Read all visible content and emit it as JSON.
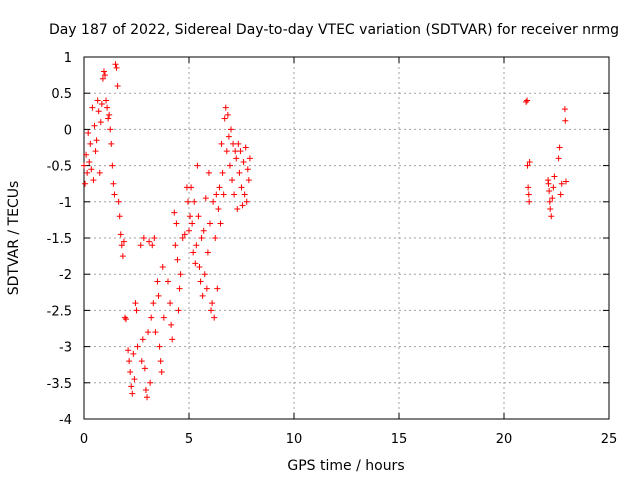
{
  "chart_data": {
    "type": "scatter",
    "title": "Day 187 of 2022, Sidereal Day-to-day VTEC variation (SDTVAR) for receiver nrmg",
    "xlabel": "GPS time / hours",
    "ylabel": "SDTVAR / TECUs",
    "xlim": [
      0,
      25
    ],
    "ylim": [
      -4,
      1
    ],
    "x_ticks": [
      "0",
      "5",
      "10",
      "15",
      "20",
      "25"
    ],
    "y_ticks": [
      "1",
      "0.5",
      "0",
      "-0.5",
      "-1",
      "-1.5",
      "-2",
      "-2.5",
      "-3",
      "-3.5",
      "-4"
    ],
    "grid": true,
    "marker": "+",
    "color": "#ff0000",
    "series": [
      {
        "name": "SDTVAR",
        "points": [
          [
            0.0,
            -0.5
          ],
          [
            0.05,
            -0.75
          ],
          [
            0.1,
            -0.35
          ],
          [
            0.15,
            -0.6
          ],
          [
            0.2,
            -0.05
          ],
          [
            0.25,
            -0.45
          ],
          [
            0.3,
            -0.2
          ],
          [
            0.35,
            -0.55
          ],
          [
            0.4,
            0.3
          ],
          [
            0.45,
            -0.7
          ],
          [
            0.5,
            0.05
          ],
          [
            0.55,
            -0.3
          ],
          [
            0.6,
            -0.15
          ],
          [
            0.65,
            0.4
          ],
          [
            0.7,
            0.25
          ],
          [
            0.75,
            -0.6
          ],
          [
            0.8,
            0.1
          ],
          [
            0.85,
            0.35
          ],
          [
            0.9,
            0.7
          ],
          [
            0.95,
            0.8
          ],
          [
            1.0,
            0.75
          ],
          [
            1.05,
            0.4
          ],
          [
            1.1,
            0.3
          ],
          [
            1.15,
            0.15
          ],
          [
            1.2,
            0.2
          ],
          [
            1.25,
            0.0
          ],
          [
            1.3,
            -0.2
          ],
          [
            1.35,
            -0.5
          ],
          [
            1.4,
            -0.75
          ],
          [
            1.45,
            -0.9
          ],
          [
            1.5,
            0.9
          ],
          [
            1.55,
            0.85
          ],
          [
            1.6,
            0.6
          ],
          [
            1.65,
            -1.0
          ],
          [
            1.7,
            -1.2
          ],
          [
            1.75,
            -1.45
          ],
          [
            1.8,
            -1.6
          ],
          [
            1.85,
            -1.75
          ],
          [
            1.9,
            -1.55
          ],
          [
            1.95,
            -2.6
          ],
          [
            2.0,
            -2.62
          ],
          [
            2.1,
            -3.05
          ],
          [
            2.15,
            -3.2
          ],
          [
            2.2,
            -3.35
          ],
          [
            2.25,
            -3.55
          ],
          [
            2.3,
            -3.65
          ],
          [
            2.35,
            -3.1
          ],
          [
            2.4,
            -3.45
          ],
          [
            2.45,
            -2.4
          ],
          [
            2.5,
            -2.5
          ],
          [
            2.55,
            -3.0
          ],
          [
            2.7,
            -1.6
          ],
          [
            2.75,
            -3.2
          ],
          [
            2.8,
            -2.9
          ],
          [
            2.85,
            -1.5
          ],
          [
            2.9,
            -3.3
          ],
          [
            2.95,
            -3.6
          ],
          [
            3.0,
            -3.7
          ],
          [
            3.05,
            -2.8
          ],
          [
            3.1,
            -1.55
          ],
          [
            3.15,
            -3.5
          ],
          [
            3.2,
            -2.6
          ],
          [
            3.25,
            -1.6
          ],
          [
            3.3,
            -2.4
          ],
          [
            3.35,
            -1.5
          ],
          [
            3.4,
            -2.8
          ],
          [
            3.5,
            -2.1
          ],
          [
            3.55,
            -2.3
          ],
          [
            3.6,
            -3.0
          ],
          [
            3.65,
            -3.2
          ],
          [
            3.7,
            -3.35
          ],
          [
            3.75,
            -1.9
          ],
          [
            3.8,
            -2.6
          ],
          [
            4.0,
            -2.1
          ],
          [
            4.1,
            -2.4
          ],
          [
            4.15,
            -2.7
          ],
          [
            4.2,
            -2.9
          ],
          [
            4.3,
            -1.15
          ],
          [
            4.35,
            -1.6
          ],
          [
            4.4,
            -1.3
          ],
          [
            4.45,
            -1.8
          ],
          [
            4.5,
            -2.5
          ],
          [
            4.55,
            -2.2
          ],
          [
            4.6,
            -2.0
          ],
          [
            4.7,
            -1.5
          ],
          [
            4.8,
            -1.45
          ],
          [
            4.9,
            -0.8
          ],
          [
            4.95,
            -1.0
          ],
          [
            5.0,
            -1.4
          ],
          [
            5.05,
            -1.2
          ],
          [
            5.1,
            -0.8
          ],
          [
            5.15,
            -1.3
          ],
          [
            5.2,
            -1.7
          ],
          [
            5.25,
            -1.0
          ],
          [
            5.3,
            -1.85
          ],
          [
            5.35,
            -1.6
          ],
          [
            5.4,
            -0.5
          ],
          [
            5.45,
            -1.2
          ],
          [
            5.5,
            -1.9
          ],
          [
            5.55,
            -2.1
          ],
          [
            5.6,
            -1.5
          ],
          [
            5.65,
            -2.3
          ],
          [
            5.7,
            -1.4
          ],
          [
            5.75,
            -2.0
          ],
          [
            5.8,
            -0.95
          ],
          [
            5.85,
            -2.2
          ],
          [
            5.9,
            -1.7
          ],
          [
            5.95,
            -0.6
          ],
          [
            6.0,
            -1.3
          ],
          [
            6.05,
            -2.5
          ],
          [
            6.1,
            -2.4
          ],
          [
            6.15,
            -1.0
          ],
          [
            6.2,
            -2.6
          ],
          [
            6.25,
            -1.5
          ],
          [
            6.3,
            -0.9
          ],
          [
            6.35,
            -2.2
          ],
          [
            6.4,
            -1.1
          ],
          [
            6.45,
            -0.8
          ],
          [
            6.5,
            -1.3
          ],
          [
            6.55,
            -0.2
          ],
          [
            6.6,
            -0.6
          ],
          [
            6.65,
            -0.9
          ],
          [
            6.7,
            0.15
          ],
          [
            6.75,
            0.3
          ],
          [
            6.8,
            -0.3
          ],
          [
            6.85,
            0.2
          ],
          [
            6.9,
            -0.1
          ],
          [
            6.95,
            -0.5
          ],
          [
            7.0,
            0.0
          ],
          [
            7.05,
            -0.7
          ],
          [
            7.1,
            -0.2
          ],
          [
            7.15,
            -0.9
          ],
          [
            7.2,
            -0.3
          ],
          [
            7.25,
            -0.4
          ],
          [
            7.3,
            -1.1
          ],
          [
            7.35,
            -0.2
          ],
          [
            7.4,
            -0.6
          ],
          [
            7.45,
            -0.3
          ],
          [
            7.5,
            -0.8
          ],
          [
            7.55,
            -1.05
          ],
          [
            7.6,
            -0.45
          ],
          [
            7.65,
            -0.9
          ],
          [
            7.7,
            -0.25
          ],
          [
            7.75,
            -1.0
          ],
          [
            7.8,
            -0.55
          ],
          [
            7.85,
            -0.7
          ],
          [
            7.9,
            -0.4
          ],
          [
            21.05,
            0.38
          ],
          [
            21.1,
            0.4
          ],
          [
            21.12,
            -0.5
          ],
          [
            21.15,
            -0.8
          ],
          [
            21.18,
            -0.9
          ],
          [
            21.2,
            -1.0
          ],
          [
            21.22,
            -0.45
          ],
          [
            22.1,
            -0.7
          ],
          [
            22.12,
            -0.75
          ],
          [
            22.15,
            -0.85
          ],
          [
            22.18,
            -1.0
          ],
          [
            22.2,
            -1.1
          ],
          [
            22.25,
            -1.2
          ],
          [
            22.3,
            -0.95
          ],
          [
            22.35,
            -0.8
          ],
          [
            22.4,
            -0.65
          ],
          [
            22.6,
            -0.4
          ],
          [
            22.65,
            -0.25
          ],
          [
            22.7,
            -0.9
          ],
          [
            22.75,
            -0.75
          ],
          [
            22.9,
            0.28
          ],
          [
            22.92,
            0.12
          ],
          [
            22.95,
            -0.72
          ]
        ]
      }
    ]
  }
}
